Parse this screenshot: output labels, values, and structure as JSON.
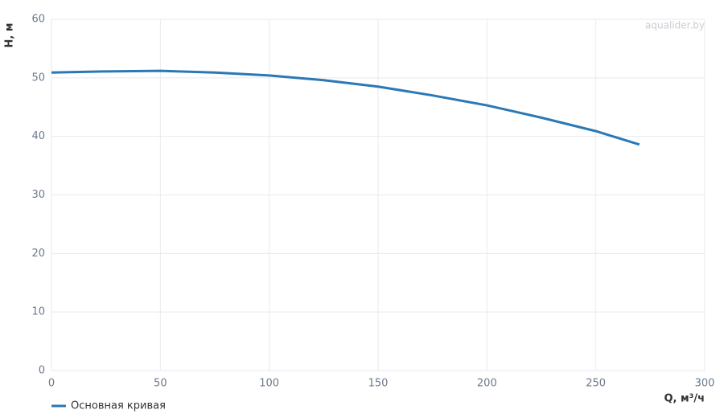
{
  "chart_data": {
    "type": "line",
    "watermark": "aqualider.by",
    "xlabel": "Q, м³/ч",
    "ylabel": "H, м",
    "x": [
      0,
      25,
      50,
      75,
      100,
      125,
      150,
      175,
      200,
      225,
      250,
      270
    ],
    "series": [
      {
        "name": "Основная кривая",
        "color": "#2a78b5",
        "values": [
          50.9,
          51.1,
          51.2,
          50.9,
          50.4,
          49.6,
          48.5,
          47.0,
          45.3,
          43.2,
          40.9,
          38.6
        ]
      }
    ],
    "xlim": [
      0,
      300
    ],
    "ylim": [
      0,
      60
    ],
    "xticks": [
      0,
      50,
      100,
      150,
      200,
      250,
      300
    ],
    "yticks": [
      0,
      10,
      20,
      30,
      40,
      50,
      60
    ],
    "grid": true,
    "legend": "bottom-left"
  }
}
